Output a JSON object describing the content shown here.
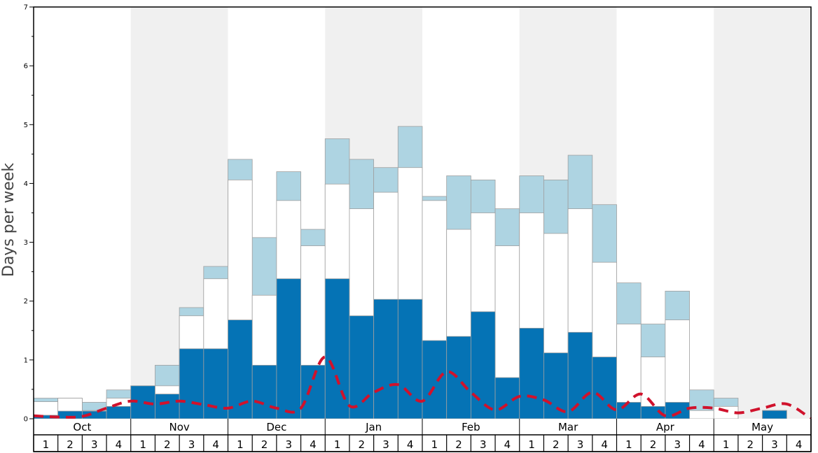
{
  "chart_data": {
    "type": "bar",
    "ylabel": "Days per week",
    "ylim": [
      0,
      7
    ],
    "y_ticks": [
      0,
      1,
      2,
      3,
      4,
      5,
      6,
      7
    ],
    "months": [
      "Oct",
      "Nov",
      "Dec",
      "Jan",
      "Feb",
      "Mar",
      "Apr",
      "May"
    ],
    "week_labels": [
      "1",
      "2",
      "3",
      "4"
    ],
    "shaded_months": [
      "Nov",
      "Jan",
      "Mar",
      "May"
    ],
    "colors": {
      "dark": "#0573b5",
      "mid": "#ffffff",
      "light": "#aed4e2",
      "line": "#d0122c",
      "shade": "#f0f0f0",
      "bar_stroke": "#a0a0a0"
    },
    "series": [
      {
        "key": "dark",
        "values": [
          0.06,
          0.13,
          0.13,
          0.21,
          0.56,
          0.42,
          1.19,
          1.19,
          1.68,
          0.91,
          2.38,
          0.91,
          2.38,
          1.75,
          2.03,
          2.03,
          1.33,
          1.4,
          1.82,
          0.7,
          1.54,
          1.12,
          1.47,
          1.05,
          0.28,
          0.21,
          0.28,
          0.0,
          0.0,
          0.0,
          0.14,
          0.0
        ]
      },
      {
        "key": "mid",
        "values": [
          0.29,
          0.35,
          0.14,
          0.35,
          0.56,
          0.56,
          1.75,
          2.38,
          4.06,
          2.1,
          3.71,
          2.94,
          3.99,
          3.57,
          3.85,
          4.27,
          3.71,
          3.22,
          3.5,
          2.94,
          3.5,
          3.15,
          3.57,
          2.66,
          1.61,
          1.05,
          1.68,
          0.14,
          0.21,
          0.0,
          0.14,
          0.0
        ]
      },
      {
        "key": "light",
        "values": [
          0.35,
          0.35,
          0.28,
          0.49,
          0.56,
          0.91,
          1.89,
          2.59,
          4.41,
          3.08,
          4.2,
          3.22,
          4.76,
          4.41,
          4.27,
          4.97,
          3.78,
          4.13,
          4.06,
          3.57,
          4.13,
          4.06,
          4.48,
          3.64,
          2.31,
          1.61,
          2.17,
          0.49,
          0.35,
          0.0,
          0.14,
          0.0
        ]
      }
    ],
    "line": {
      "values": [
        0.05,
        0.03,
        0.04,
        0.18,
        0.3,
        0.25,
        0.3,
        0.24,
        0.18,
        0.3,
        0.18,
        0.18,
        1.05,
        0.22,
        0.45,
        0.58,
        0.3,
        0.8,
        0.45,
        0.15,
        0.38,
        0.32,
        0.12,
        0.45,
        0.15,
        0.42,
        0.05,
        0.18,
        0.18,
        0.1,
        0.18,
        0.25
      ]
    }
  }
}
